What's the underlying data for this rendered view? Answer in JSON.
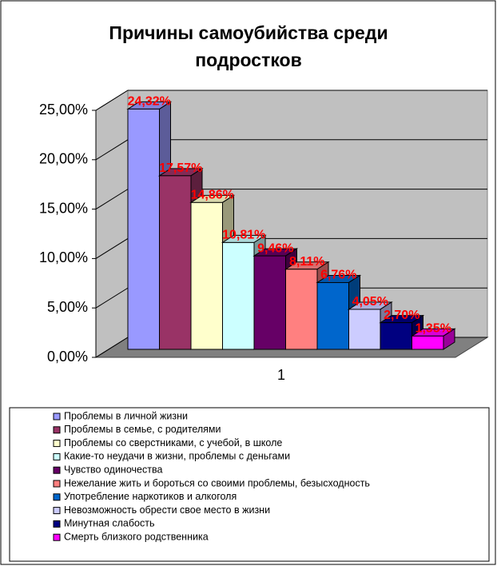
{
  "chart_data": {
    "type": "bar3d",
    "title": "Причины самоубийства среди подростков",
    "categories": [
      "1"
    ],
    "series": [
      {
        "name": "Проблемы в личной жизни",
        "color": "#9999ff",
        "values": [
          24.32
        ],
        "value_labels": [
          "24,32%"
        ]
      },
      {
        "name": "Проблемы в семье, с родителями",
        "color": "#993366",
        "values": [
          17.57
        ],
        "value_labels": [
          "17,57%"
        ]
      },
      {
        "name": "Проблемы со сверстниками, с учебой, в школе",
        "color": "#ffffcc",
        "values": [
          14.86
        ],
        "value_labels": [
          "14,86%"
        ]
      },
      {
        "name": "Какие-то неудачи в жизни, проблемы с деньгами",
        "color": "#ccffff",
        "values": [
          10.81
        ],
        "value_labels": [
          "10,81%"
        ]
      },
      {
        "name": "Чувство одиночества",
        "color": "#660066",
        "values": [
          9.46
        ],
        "value_labels": [
          "9,46%"
        ]
      },
      {
        "name": "Нежелание жить и бороться со своими проблемы, безысходность",
        "color": "#ff8080",
        "values": [
          8.11
        ],
        "value_labels": [
          "8,11%"
        ]
      },
      {
        "name": "Употребление наркотиков и алкоголя",
        "color": "#0066cc",
        "values": [
          6.76
        ],
        "value_labels": [
          "6,76%"
        ]
      },
      {
        "name": "Невозможность обрести свое место в жизни",
        "color": "#ccccff",
        "values": [
          4.05
        ],
        "value_labels": [
          "4,05%"
        ]
      },
      {
        "name": "Минутная слабость",
        "color": "#000080",
        "values": [
          2.7
        ],
        "value_labels": [
          "2,70%"
        ]
      },
      {
        "name": "Смерть близкого родственника",
        "color": "#ff00ff",
        "values": [
          1.35
        ],
        "value_labels": [
          "1,35%"
        ]
      }
    ],
    "ylim": [
      0,
      25
    ],
    "yticks": [
      {
        "value": 0,
        "label": "0,00%"
      },
      {
        "value": 5,
        "label": "5,00%"
      },
      {
        "value": 10,
        "label": "10,00%"
      },
      {
        "value": 15,
        "label": "15,00%"
      },
      {
        "value": 20,
        "label": "20,00%"
      },
      {
        "value": 25,
        "label": "25,00%"
      }
    ],
    "grid": true,
    "legend": "bottom"
  }
}
